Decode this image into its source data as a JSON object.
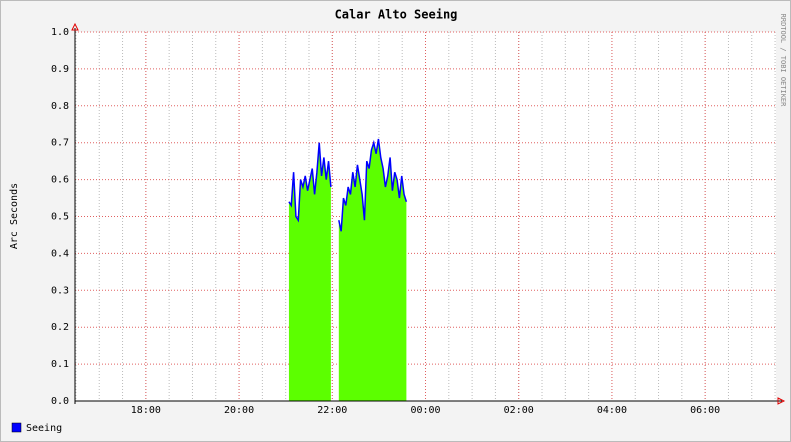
{
  "chart_data": {
    "type": "area",
    "title": "Calar Alto Seeing",
    "y_label": "Arc Seconds",
    "watermark": "RRDTOOL / TOBI OETIKER",
    "xlim": [
      16.48,
      31.52
    ],
    "xticks": [
      {
        "value": 18,
        "label": "18:00"
      },
      {
        "value": 20,
        "label": "20:00"
      },
      {
        "value": 22,
        "label": "22:00"
      },
      {
        "value": 24,
        "label": "00:00"
      },
      {
        "value": 26,
        "label": "02:00"
      },
      {
        "value": 28,
        "label": "04:00"
      },
      {
        "value": 30,
        "label": "06:00"
      }
    ],
    "ylim": [
      0,
      1
    ],
    "yticks": [
      {
        "value": 0,
        "label": "0.0"
      },
      0.1,
      0.2,
      0.3,
      0.4,
      0.5,
      0.6,
      0.7,
      0.8,
      0.9,
      {
        "value": 1,
        "label": "1.0"
      }
    ],
    "grid": true,
    "legend": "bottom-left",
    "x": [
      21.07,
      21.12,
      21.17,
      21.22,
      21.27,
      21.32,
      21.37,
      21.42,
      21.47,
      21.52,
      21.57,
      21.62,
      21.67,
      21.72,
      21.77,
      21.82,
      21.87,
      21.92,
      21.97,
      22.05,
      22.14,
      22.19,
      22.24,
      22.29,
      22.34,
      22.39,
      22.44,
      22.49,
      22.54,
      22.59,
      22.64,
      22.69,
      22.74,
      22.79,
      22.84,
      22.89,
      22.94,
      22.99,
      23.04,
      23.09,
      23.14,
      23.19,
      23.24,
      23.29,
      23.34,
      23.39,
      23.44,
      23.49,
      23.54,
      23.59
    ],
    "series": [
      {
        "name": "Seeing",
        "color": "#0000ff",
        "fill": "#5cff00",
        "values": [
          0.54,
          0.53,
          0.62,
          0.5,
          0.49,
          0.6,
          0.58,
          0.61,
          0.57,
          0.6,
          0.63,
          0.56,
          0.62,
          0.7,
          0.61,
          0.66,
          0.6,
          0.65,
          0.58,
          null,
          0.49,
          0.46,
          0.55,
          0.53,
          0.58,
          0.56,
          0.62,
          0.58,
          0.64,
          0.6,
          0.56,
          0.49,
          0.65,
          0.63,
          0.68,
          0.7,
          0.67,
          0.71,
          0.66,
          0.63,
          0.58,
          0.61,
          0.66,
          0.57,
          0.62,
          0.6,
          0.55,
          0.61,
          0.56,
          0.54
        ]
      }
    ]
  }
}
